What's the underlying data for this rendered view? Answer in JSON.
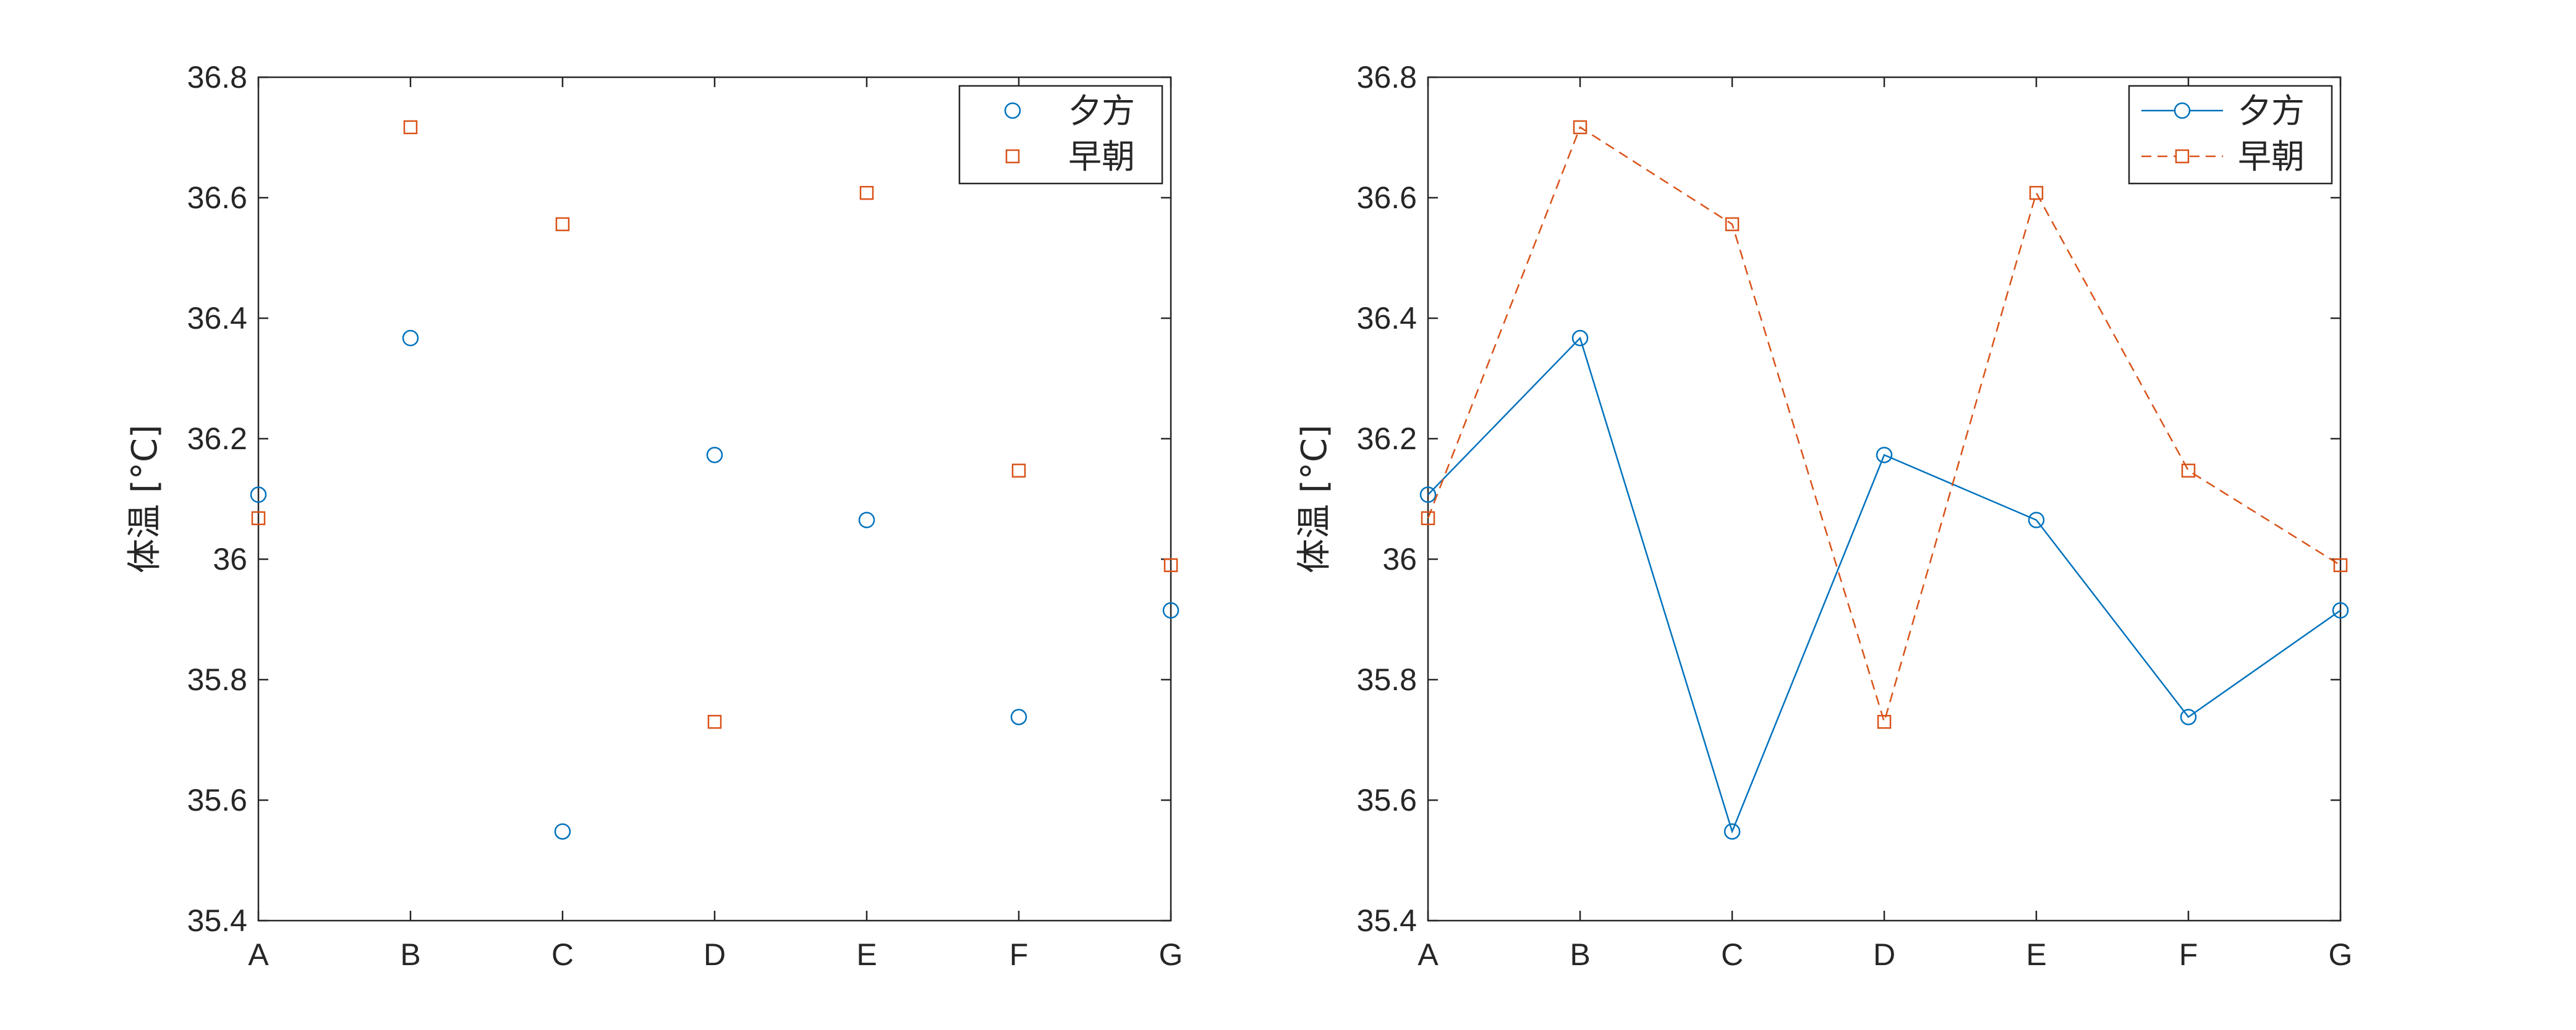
{
  "chart_data": [
    {
      "type": "scatter",
      "categories": [
        "A",
        "B",
        "C",
        "D",
        "E",
        "F",
        "G"
      ],
      "series": [
        {
          "name": "夕方",
          "values": [
            36.107,
            36.367,
            35.548,
            36.173,
            36.065,
            35.738,
            35.915
          ],
          "color": "#0072BD",
          "marker": "circle"
        },
        {
          "name": "早朝",
          "values": [
            36.068,
            36.717,
            36.556,
            35.73,
            36.608,
            36.147,
            35.99
          ],
          "color": "#D95319",
          "marker": "square"
        }
      ],
      "ylabel": "体温 [°C]",
      "ylim": [
        35.4,
        36.8
      ],
      "yticks": [
        "35.4",
        "35.6",
        "35.8",
        "36",
        "36.2",
        "36.4",
        "36.6",
        "36.8"
      ],
      "grid": false,
      "legend_position": "top-right"
    },
    {
      "type": "line",
      "categories": [
        "A",
        "B",
        "C",
        "D",
        "E",
        "F",
        "G"
      ],
      "series": [
        {
          "name": "夕方",
          "values": [
            36.107,
            36.367,
            35.548,
            36.173,
            36.065,
            35.738,
            35.915
          ],
          "color": "#0072BD",
          "marker": "circle",
          "line": "solid"
        },
        {
          "name": "早朝",
          "values": [
            36.068,
            36.717,
            36.556,
            35.73,
            36.608,
            36.147,
            35.99
          ],
          "color": "#D95319",
          "marker": "square",
          "line": "dashed"
        }
      ],
      "ylabel": "体温 [°C]",
      "ylim": [
        35.4,
        36.8
      ],
      "yticks": [
        "35.4",
        "35.6",
        "35.8",
        "36",
        "36.2",
        "36.4",
        "36.6",
        "36.8"
      ],
      "grid": false,
      "legend_position": "top-right"
    }
  ]
}
